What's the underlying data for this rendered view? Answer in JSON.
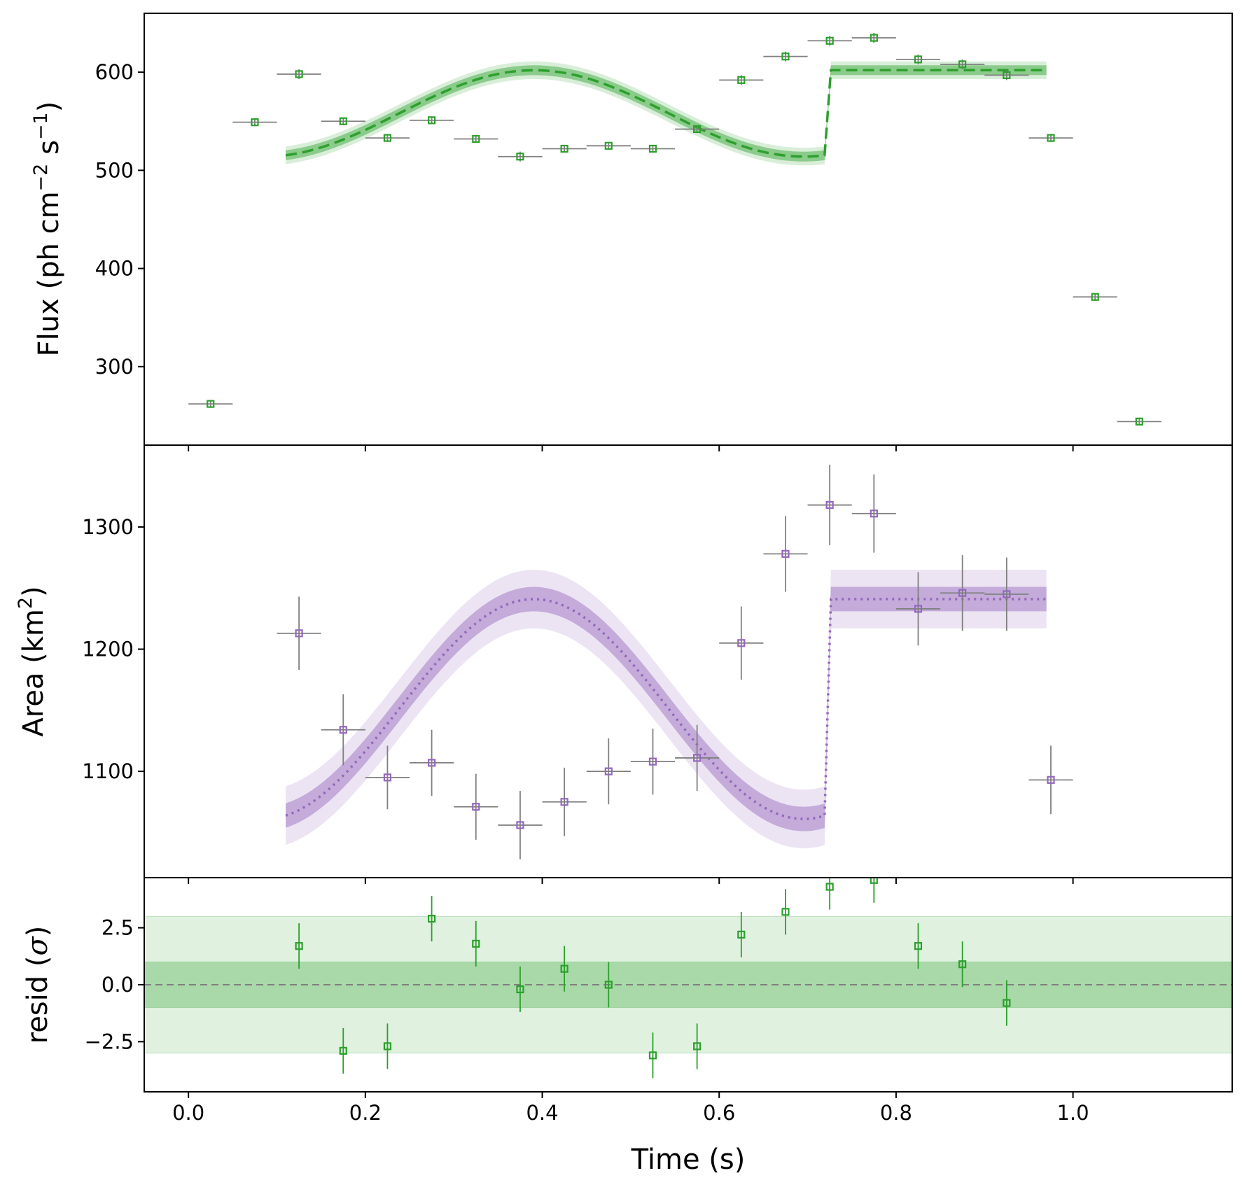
{
  "colors": {
    "flux": "#2ca02c",
    "area": "#9467bd",
    "errorbar": "#808080",
    "zero_line": "#808080",
    "axes": "#000000"
  },
  "chart_data": [
    {
      "panel": "flux",
      "type": "scatter",
      "ylabel": "Flux (ph cm−2 s−1)",
      "ylabel_parts": {
        "base": "Flux (ph cm",
        "sup1": "−2",
        "mid": " s",
        "sup2": "−1",
        "end": ")"
      },
      "ylim": [
        220,
        660
      ],
      "yticks": [
        300,
        400,
        500,
        600
      ],
      "ytick_labels": [
        "300",
        "400",
        "500",
        "600"
      ],
      "xlim": [
        -0.05,
        1.18
      ],
      "series": [
        {
          "name": "flux data",
          "marker": "square",
          "x": [
            0.025,
            0.075,
            0.125,
            0.175,
            0.225,
            0.275,
            0.325,
            0.375,
            0.425,
            0.475,
            0.525,
            0.575,
            0.625,
            0.675,
            0.725,
            0.775,
            0.825,
            0.875,
            0.925,
            0.975,
            1.025,
            1.075
          ],
          "xerr": 0.025,
          "y": [
            262,
            549,
            598,
            550,
            533,
            551,
            532,
            514,
            522,
            525,
            522,
            542,
            592,
            616,
            632,
            635,
            613,
            608,
            597,
            533,
            371,
            244
          ],
          "yerr": [
            4,
            4,
            5,
            4,
            4,
            4,
            4,
            5,
            4,
            4,
            4,
            4,
            5,
            5,
            5,
            5,
            5,
            5,
            5,
            4,
            4,
            4
          ]
        },
        {
          "name": "flux model",
          "style": "dashed",
          "x_range": [
            0.11,
            0.97
          ],
          "model_min": 514,
          "model_max": 602,
          "flat_from": 0.72,
          "band_halfwidth": 5,
          "band_halfwidth_outer": 9
        }
      ]
    },
    {
      "panel": "area",
      "type": "scatter",
      "ylabel": "Area (km2)",
      "ylabel_parts": {
        "base": "Area (km",
        "sup1": "2",
        "end": ")"
      },
      "ylim": [
        1013,
        1367
      ],
      "yticks": [
        1100,
        1200,
        1300
      ],
      "ytick_labels": [
        "1100",
        "1200",
        "1300"
      ],
      "xlim": [
        -0.05,
        1.18
      ],
      "series": [
        {
          "name": "area data",
          "marker": "square",
          "x": [
            0.125,
            0.175,
            0.225,
            0.275,
            0.325,
            0.375,
            0.425,
            0.475,
            0.525,
            0.575,
            0.625,
            0.675,
            0.725,
            0.775,
            0.825,
            0.875,
            0.925,
            0.975
          ],
          "xerr": 0.025,
          "y": [
            1213,
            1134,
            1095,
            1107,
            1071,
            1056,
            1075,
            1100,
            1108,
            1111,
            1205,
            1278,
            1318,
            1311,
            1233,
            1246,
            1245,
            1093
          ],
          "yerr": [
            30,
            29,
            26,
            27,
            27,
            28,
            28,
            27,
            27,
            27,
            30,
            31,
            33,
            32,
            30,
            31,
            30,
            28
          ]
        },
        {
          "name": "area model",
          "style": "dotted",
          "x_range": [
            0.11,
            0.97
          ],
          "model_min": 1061,
          "model_max": 1241,
          "flat_from": 0.72,
          "band_halfwidth": 10,
          "band_halfwidth_outer": 24
        }
      ]
    },
    {
      "panel": "residuals",
      "type": "scatter",
      "ylabel": "resid (σ)",
      "ylabel_parts": {
        "base": "resid (",
        "sym": "σ",
        "end": ")"
      },
      "ylim": [
        -4.7,
        4.7
      ],
      "yticks": [
        -2.5,
        0.0,
        2.5
      ],
      "ytick_labels": [
        "−2.5",
        "0.0",
        "2.5"
      ],
      "xlim": [
        -0.05,
        1.18
      ],
      "xticks": [
        0.0,
        0.2,
        0.4,
        0.6,
        0.8,
        1.0
      ],
      "xtick_labels": [
        "0.0",
        "0.2",
        "0.4",
        "0.6",
        "0.8",
        "1.0"
      ],
      "xlabel": "Time (s)",
      "bands": [
        {
          "sigma": 1
        },
        {
          "sigma": 3
        }
      ],
      "series": [
        {
          "name": "residuals",
          "marker": "square",
          "x": [
            0.125,
            0.175,
            0.225,
            0.275,
            0.325,
            0.375,
            0.425,
            0.475,
            0.525,
            0.575,
            0.625,
            0.675,
            0.725,
            0.775,
            0.825,
            0.875,
            0.925
          ],
          "y": [
            1.7,
            -2.9,
            -2.7,
            2.9,
            1.8,
            -0.2,
            0.7,
            0.0,
            -3.1,
            -2.7,
            2.2,
            3.2,
            4.3,
            4.6,
            1.7,
            0.9,
            -0.8
          ],
          "yerr": 1
        }
      ]
    }
  ]
}
